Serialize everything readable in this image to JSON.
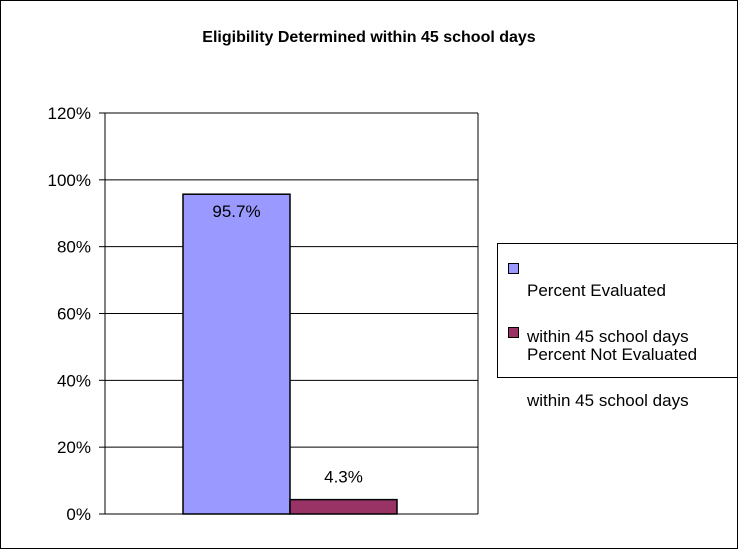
{
  "chart_data": {
    "type": "bar",
    "title": "Eligibility Determined within 45 school days",
    "xlabel": "",
    "ylabel": "",
    "ylim": [
      0,
      1.2
    ],
    "y_ticks": [
      0,
      0.2,
      0.4,
      0.6,
      0.8,
      1.0,
      1.2
    ],
    "y_tick_labels": [
      "0%",
      "20%",
      "40%",
      "60%",
      "80%",
      "100%",
      "120%"
    ],
    "grid": true,
    "legend_position": "right",
    "series": [
      {
        "name": "Percent Evaluated within 45 school days",
        "values": [
          0.957
        ],
        "data_labels": [
          "95.7%"
        ],
        "color": "#9999ff"
      },
      {
        "name": "Percent Not Evaluated within 45 school days",
        "values": [
          0.043
        ],
        "data_labels": [
          "4.3%"
        ],
        "color": "#993366"
      }
    ]
  },
  "legend": {
    "items": [
      {
        "line1": "Percent Evaluated",
        "line2": "within 45 school days",
        "color": "#9999ff"
      },
      {
        "line1": "Percent Not Evaluated",
        "line2": "within 45 school days",
        "color": "#993366"
      }
    ]
  }
}
